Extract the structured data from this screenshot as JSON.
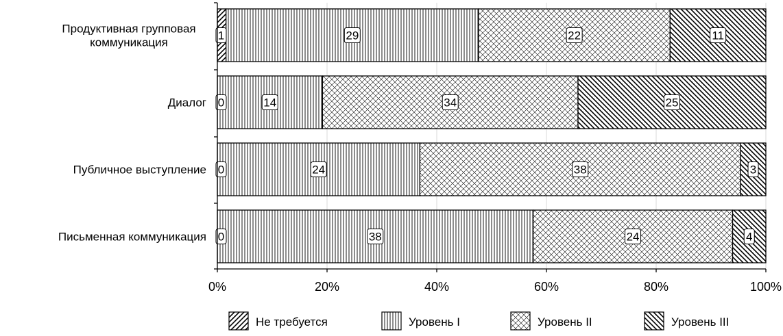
{
  "chart_data": {
    "type": "bar",
    "orientation": "horizontal",
    "stacked": "percent",
    "categories": [
      [
        "Продуктивная групповая",
        "коммуникация"
      ],
      [
        "Диалог"
      ],
      [
        "Публичное выступление"
      ],
      [
        "Письменная коммуникация"
      ]
    ],
    "series": [
      {
        "name": "Не требуется",
        "values": [
          1,
          0,
          0,
          0
        ],
        "pattern": "diag-right"
      },
      {
        "name": "Уровень I",
        "values": [
          29,
          14,
          24,
          38
        ],
        "pattern": "vertical"
      },
      {
        "name": "Уровень II",
        "values": [
          22,
          34,
          38,
          24
        ],
        "pattern": "crosshatch"
      },
      {
        "name": "Уровень III",
        "values": [
          11,
          25,
          3,
          4
        ],
        "pattern": "diag-left"
      }
    ],
    "xticks": [
      "0%",
      "20%",
      "40%",
      "60%",
      "80%",
      "100%"
    ],
    "xlim": [
      0,
      100
    ],
    "grid": "vertical",
    "legend": "bottom"
  }
}
